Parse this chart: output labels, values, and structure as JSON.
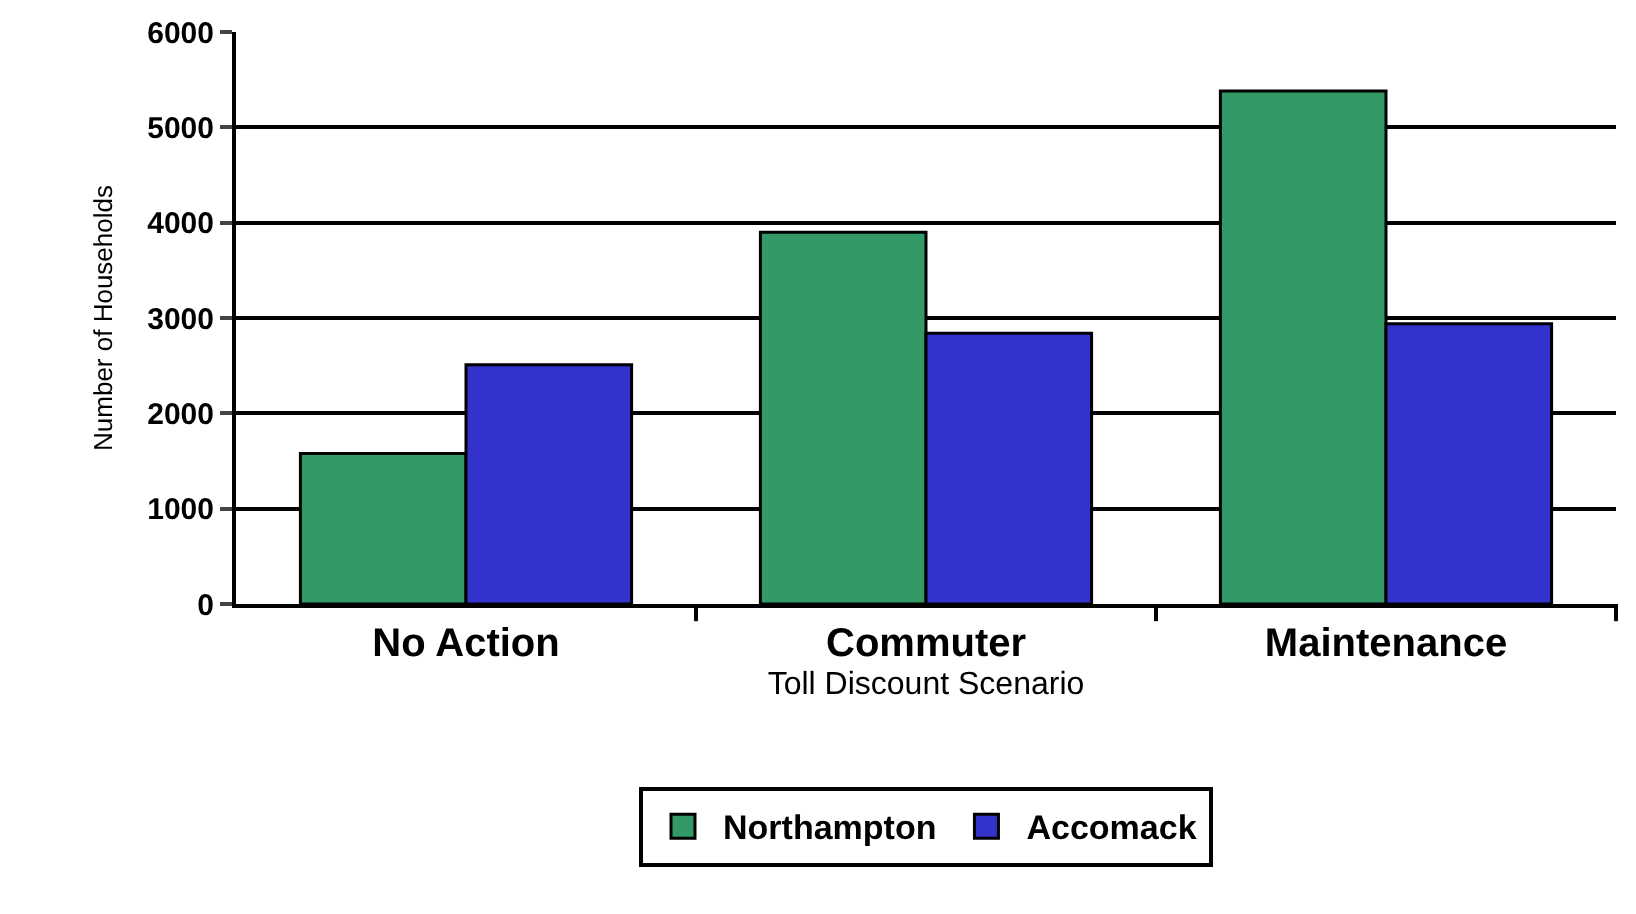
{
  "chart_data": {
    "type": "bar",
    "xlabel": "Toll Discount Scenario",
    "ylabel": "Number of Households",
    "categories": [
      "No Action",
      "Commuter",
      "Maintenance"
    ],
    "series": [
      {
        "name": "Northampton",
        "color": "#339966",
        "values": [
          1580,
          3900,
          5380
        ]
      },
      {
        "name": "Accomack",
        "color": "#3333cc",
        "values": [
          2510,
          2840,
          2940
        ]
      }
    ],
    "ylim": [
      0,
      6000
    ],
    "yticks": [
      0,
      1000,
      2000,
      3000,
      4000,
      5000,
      6000
    ],
    "grid": "y",
    "legend": "bottom"
  }
}
